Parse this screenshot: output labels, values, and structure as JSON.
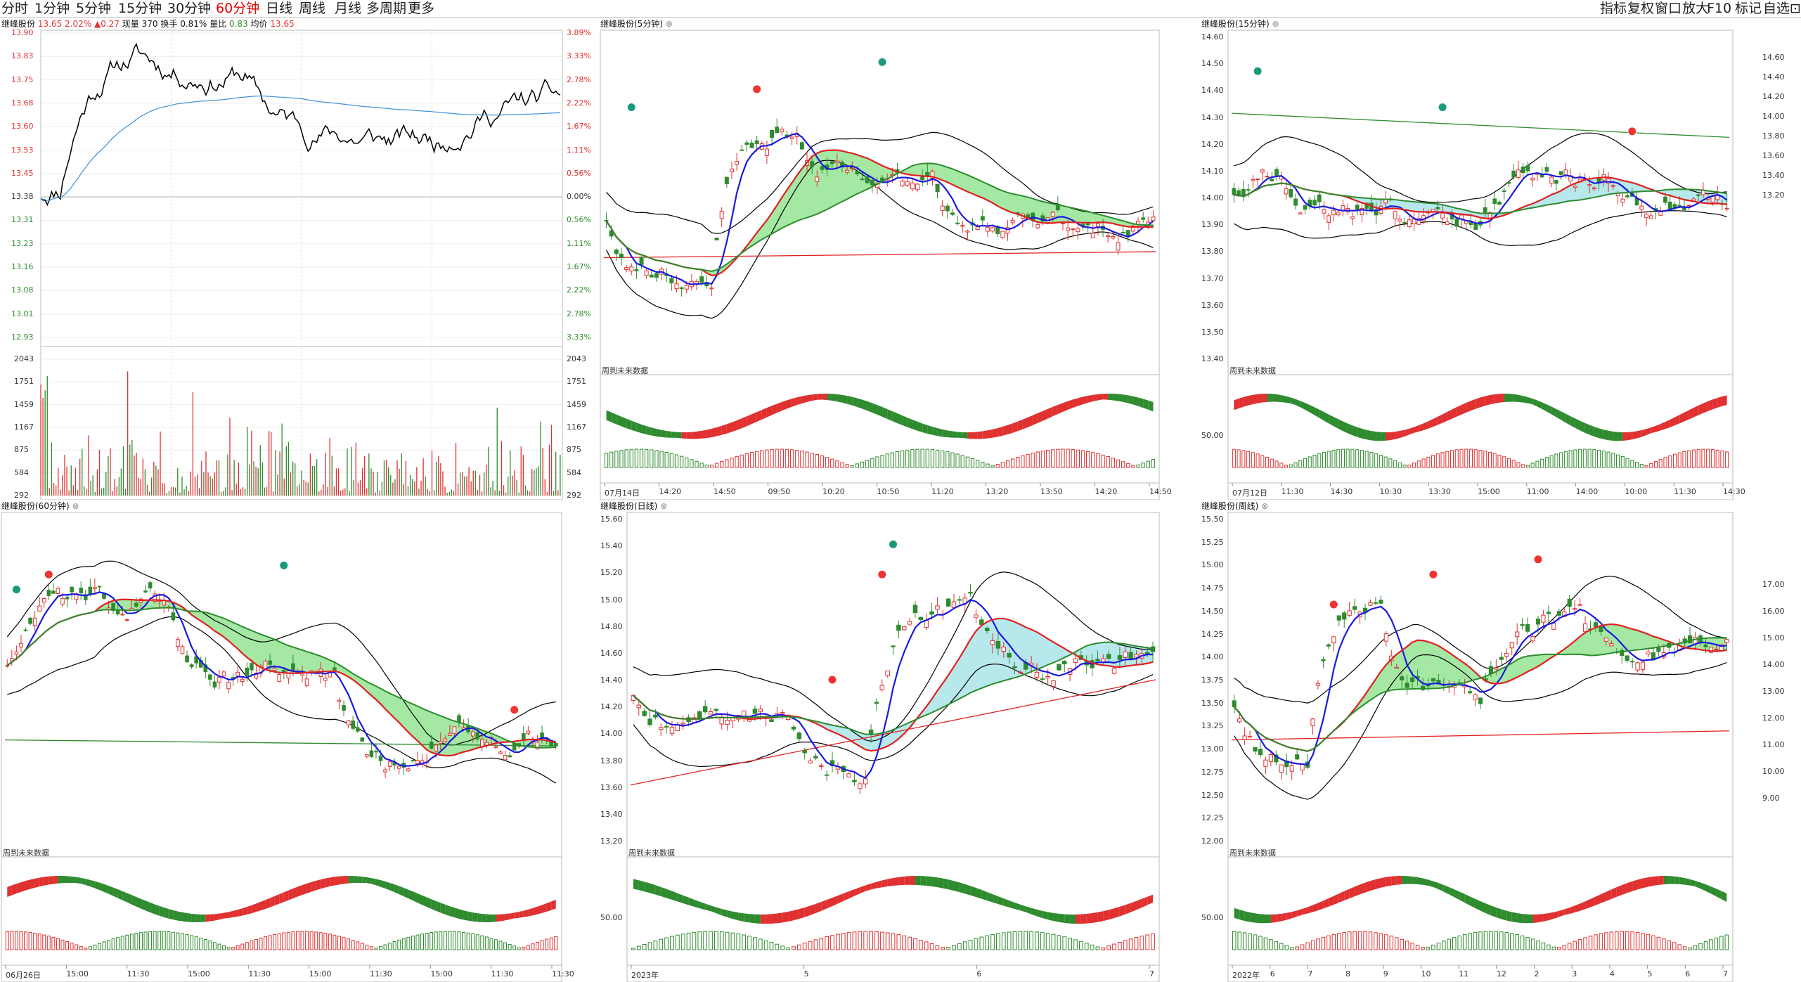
{
  "toolbar": {
    "tabs": [
      "分时",
      "1分钟",
      "5分钟",
      "15分钟",
      "30分钟",
      "60分钟",
      "日线",
      "周线",
      "月线",
      "多周期",
      "更多"
    ],
    "active_tab": "60分钟",
    "right_tools": [
      "指标",
      "复权",
      "窗口",
      "放大",
      "F10",
      "标记",
      "自选",
      "⊡"
    ]
  },
  "intraday": {
    "stock": "继峰股份",
    "price": "13.65",
    "change_pct": "2.02%",
    "change": "▲0.27",
    "vol_label": "现量",
    "vol": "370",
    "turnover_label": "换手",
    "turnover": "0.81%",
    "vr_label": "量比",
    "vr": "0.83",
    "avg_label": "均价",
    "avg": "13.65",
    "price_ticks": [
      "13.90",
      "13.83",
      "13.75",
      "13.68",
      "13.60",
      "13.53",
      "13.45",
      "13.38",
      "13.31",
      "13.23",
      "13.16",
      "13.08",
      "13.01",
      "12.93"
    ],
    "pct_ticks": [
      "3.89%",
      "3.33%",
      "2.78%",
      "2.22%",
      "1.67%",
      "1.11%",
      "0.56%",
      "0.00%",
      "0.56%",
      "1.11%",
      "1.67%",
      "2.22%",
      "2.78%",
      "3.33%"
    ],
    "vol_ticks": [
      "2043",
      "1751",
      "1459",
      "1167",
      "875",
      "584",
      "292"
    ],
    "colors": {
      "up": "#e03030",
      "down": "#2e8b2e",
      "price_line": "#000000",
      "avg_line": "#3a8fd8"
    }
  },
  "panels": [
    {
      "title": "继峰股份(5分钟)",
      "footer": "周到未来数据",
      "y_ticks": [],
      "x_ticks": [
        "07月14日",
        "14:20",
        "14:50",
        "09:50",
        "10:20",
        "10:50",
        "11:20",
        "13:20",
        "13:50",
        "14:20",
        "14:50"
      ],
      "osc_tick": ""
    },
    {
      "title": "继峰股份(15分钟)",
      "footer": "周到未来数据",
      "y_ticks": [
        "14.60",
        "14.50",
        "14.40",
        "14.30",
        "14.20",
        "14.10",
        "14.00",
        "13.90",
        "13.80",
        "13.70",
        "13.60",
        "13.50",
        "13.40"
      ],
      "x_ticks": [
        "07月12日",
        "11:30",
        "14:30",
        "10:30",
        "13:30",
        "15:00",
        "11:00",
        "14:00",
        "10:00",
        "11:30",
        "14:30"
      ],
      "osc_tick": "50.00"
    },
    {
      "title": "继峰股份(60分钟)",
      "footer": "周到未来数据",
      "y_ticks": [],
      "x_ticks": [
        "06月26日",
        "15:00",
        "11:30",
        "15:00",
        "11:30",
        "15:00",
        "11:30",
        "15:00",
        "11:30",
        "11:30"
      ],
      "osc_tick": ""
    },
    {
      "title": "继峰股份(日线)",
      "footer": "周到未来数据",
      "y_ticks": [
        "15.60",
        "15.40",
        "15.20",
        "15.00",
        "14.80",
        "14.60",
        "14.40",
        "14.20",
        "14.00",
        "13.80",
        "13.60",
        "13.40",
        "13.20"
      ],
      "x_ticks": [
        "2023年",
        "5",
        "6",
        "7"
      ],
      "osc_tick": "50.00"
    },
    {
      "title": "继峰股份(周线)",
      "footer": "周到未来数据",
      "y_ticks": [
        "15.50",
        "15.25",
        "15.00",
        "14.75",
        "14.50",
        "14.25",
        "14.00",
        "13.75",
        "13.50",
        "13.25",
        "13.00",
        "12.75",
        "12.50",
        "12.25",
        "12.00"
      ],
      "x_ticks": [
        "2022年",
        "6",
        "7",
        "8",
        "9",
        "10",
        "11",
        "12",
        "2",
        "3",
        "4",
        "5",
        "6",
        "7"
      ],
      "osc_tick": "50.00"
    }
  ],
  "right_axis": [
    "14.60",
    "14.40",
    "14.20",
    "14.00",
    "13.80",
    "13.60",
    "13.40",
    "13.20",
    "17.00",
    "16.00",
    "15.00",
    "14.00",
    "13.00",
    "12.00",
    "11.00",
    "10.00",
    "9.00"
  ],
  "colors": {
    "up": "#e03030",
    "down": "#2e8b2e",
    "ma_blue": "#1a1ae0",
    "ma_red": "#e02020",
    "ma_green": "#2e8b2e",
    "band": "#000000",
    "cloud_green": "#86e086",
    "cloud_cyan": "#9fe0e6"
  }
}
